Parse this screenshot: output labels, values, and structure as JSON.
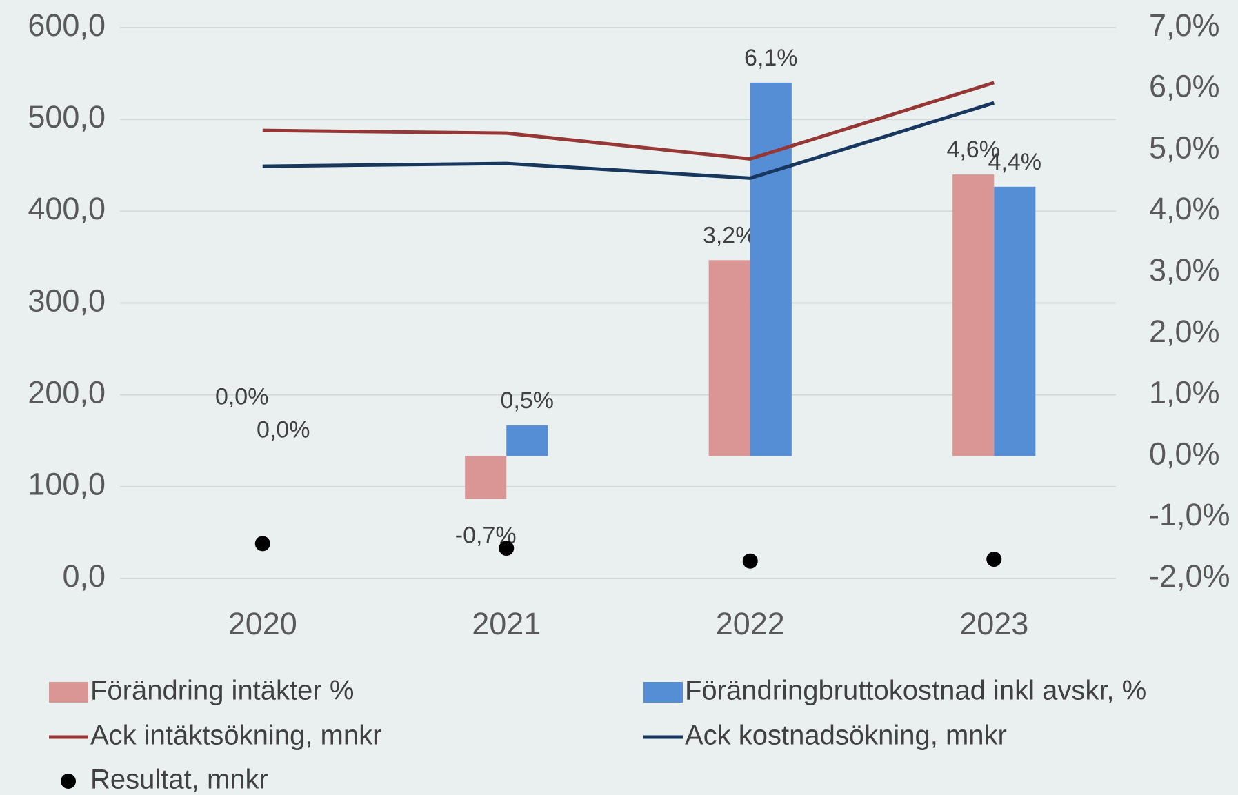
{
  "chart_data": {
    "type": "bar",
    "categories": [
      "2020",
      "2021",
      "2022",
      "2023"
    ],
    "ylim": [
      0,
      600
    ],
    "yticks": [
      {
        "value": 0,
        "label": "0,0"
      },
      {
        "value": 100,
        "label": "100,0"
      },
      {
        "value": 200,
        "label": "200,0"
      },
      {
        "value": 300,
        "label": "300,0"
      },
      {
        "value": 400,
        "label": "400,0"
      },
      {
        "value": 500,
        "label": "500,0"
      },
      {
        "value": 600,
        "label": "600,0"
      }
    ],
    "y2lim": [
      -2,
      7
    ],
    "y2ticks": [
      {
        "value": -2,
        "label": "-2,0%"
      },
      {
        "value": -1,
        "label": "-1,0%"
      },
      {
        "value": 0,
        "label": "0,0%"
      },
      {
        "value": 1,
        "label": "1,0%"
      },
      {
        "value": 2,
        "label": "2,0%"
      },
      {
        "value": 3,
        "label": "3,0%"
      },
      {
        "value": 4,
        "label": "4,0%"
      },
      {
        "value": 5,
        "label": "5,0%"
      },
      {
        "value": 6,
        "label": "6,0%"
      },
      {
        "value": 7,
        "label": "7,0%"
      }
    ],
    "grid": true,
    "legend": "bottom",
    "series": [
      {
        "name": "Förändring intäkter %",
        "type": "bar",
        "axis": "y2",
        "color": "#da9694",
        "values": [
          0,
          -0.7,
          3.2,
          4.6
        ],
        "value_labels": [
          "0,0%",
          "-0,7%",
          "3,2%",
          "4,6%"
        ]
      },
      {
        "name": "Förändringbruttokostnad inkl avskr, %",
        "type": "bar",
        "axis": "y2",
        "color": "#558ed5",
        "values": [
          0,
          0.5,
          6.1,
          4.4
        ],
        "value_labels": [
          "0,0%",
          "0,5%",
          "6,1%",
          "4,4%"
        ]
      },
      {
        "name": "Ack intäktsökning, mnkr",
        "type": "line",
        "axis": "y",
        "color": "#953735",
        "values": [
          488,
          485,
          457,
          540
        ]
      },
      {
        "name": "Ack kostnadsökning, mnkr",
        "type": "line",
        "axis": "y",
        "color": "#17375e",
        "values": [
          449,
          452,
          436,
          518
        ]
      },
      {
        "name": "Resultat, mnkr",
        "type": "scatter",
        "axis": "y",
        "color": "#000000",
        "values": [
          38,
          33,
          19,
          21
        ]
      }
    ]
  }
}
